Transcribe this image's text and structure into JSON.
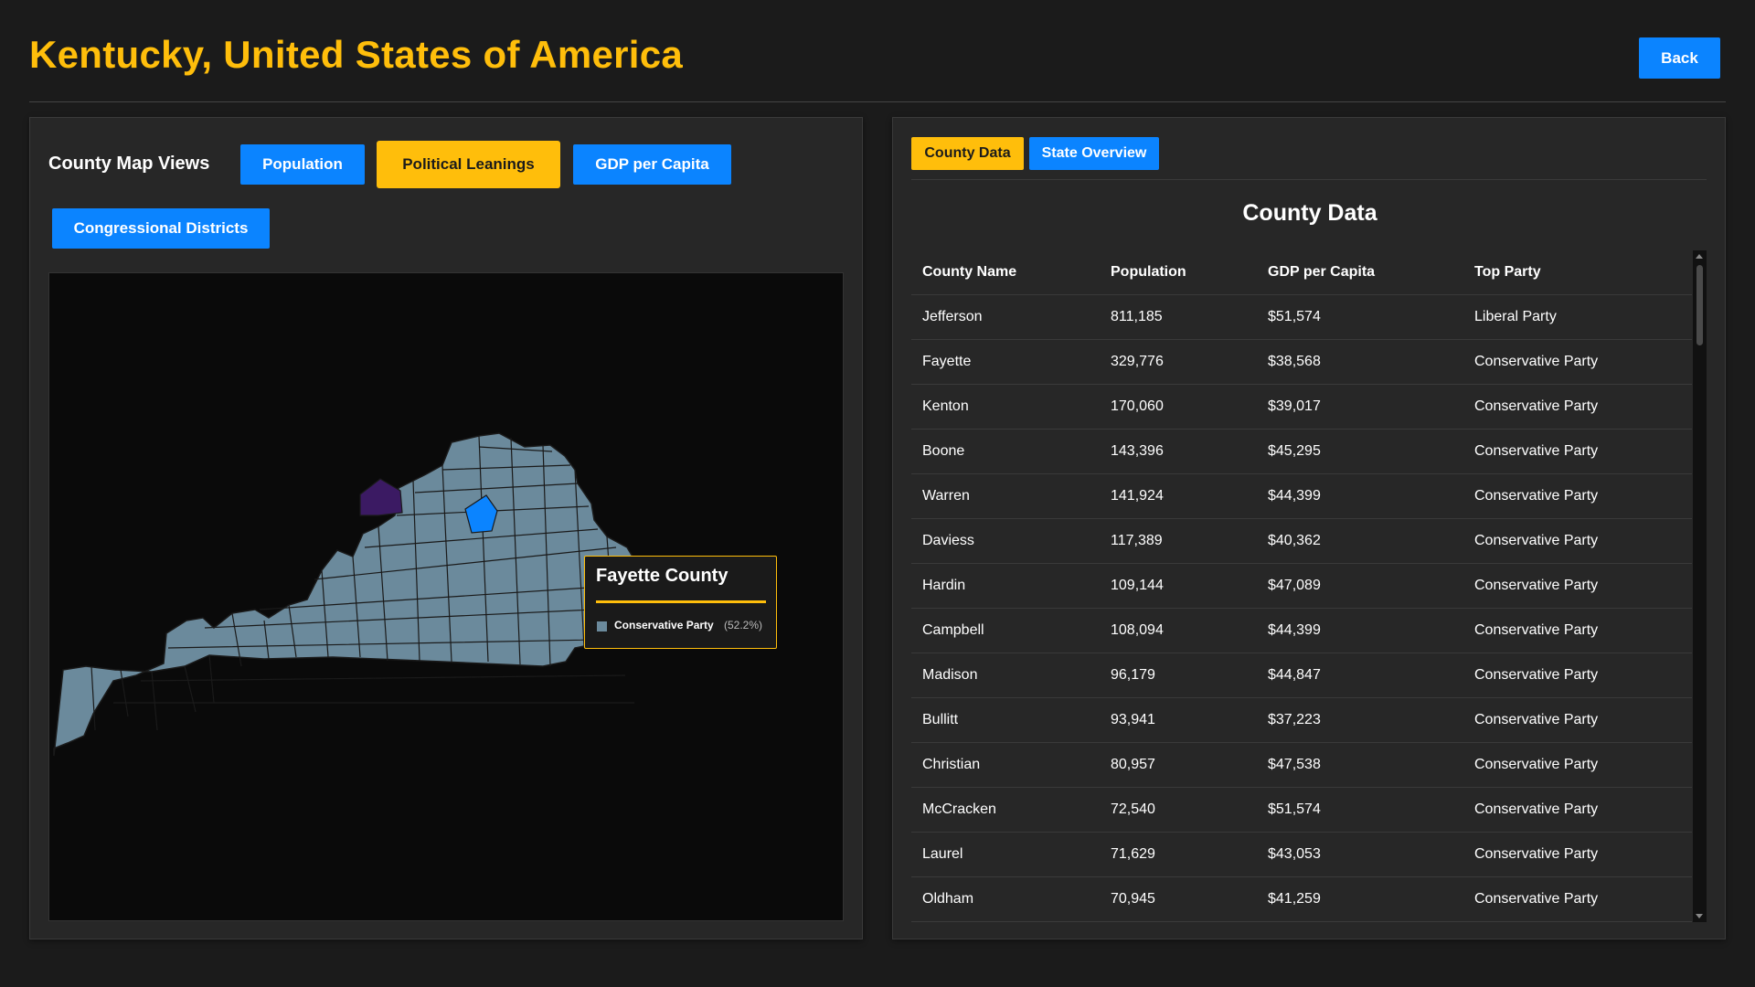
{
  "header": {
    "title": "Kentucky, United States of America",
    "back_label": "Back"
  },
  "map_panel": {
    "views_label": "County Map Views",
    "buttons": [
      {
        "label": "Population",
        "active": false
      },
      {
        "label": "Political Leanings",
        "active": true
      },
      {
        "label": "GDP per Capita",
        "active": false
      },
      {
        "label": "Congressional Districts",
        "active": false
      }
    ],
    "colors": {
      "county_fill": "#6b8a9c",
      "highlight_fill": "#0b84ff",
      "liberal_fill": "#3b1a63",
      "accent": "#ffbe0b"
    },
    "tooltip": {
      "title": "Fayette County",
      "party": "Conservative Party",
      "percent": "(52.2%)"
    }
  },
  "data_panel": {
    "tabs": [
      {
        "label": "County Data",
        "active": true
      },
      {
        "label": "State Overview",
        "active": false
      }
    ],
    "section_title": "County Data",
    "table": {
      "headers": [
        "County Name",
        "Population",
        "GDP per Capita",
        "Top Party"
      ],
      "rows": [
        [
          "Jefferson",
          "811,185",
          "$51,574",
          "Liberal Party"
        ],
        [
          "Fayette",
          "329,776",
          "$38,568",
          "Conservative Party"
        ],
        [
          "Kenton",
          "170,060",
          "$39,017",
          "Conservative Party"
        ],
        [
          "Boone",
          "143,396",
          "$45,295",
          "Conservative Party"
        ],
        [
          "Warren",
          "141,924",
          "$44,399",
          "Conservative Party"
        ],
        [
          "Daviess",
          "117,389",
          "$40,362",
          "Conservative Party"
        ],
        [
          "Hardin",
          "109,144",
          "$47,089",
          "Conservative Party"
        ],
        [
          "Campbell",
          "108,094",
          "$44,399",
          "Conservative Party"
        ],
        [
          "Madison",
          "96,179",
          "$44,847",
          "Conservative Party"
        ],
        [
          "Bullitt",
          "93,941",
          "$37,223",
          "Conservative Party"
        ],
        [
          "Christian",
          "80,957",
          "$47,538",
          "Conservative Party"
        ],
        [
          "McCracken",
          "72,540",
          "$51,574",
          "Conservative Party"
        ],
        [
          "Laurel",
          "71,629",
          "$43,053",
          "Conservative Party"
        ],
        [
          "Oldham",
          "70,945",
          "$41,259",
          "Conservative Party"
        ]
      ]
    }
  }
}
